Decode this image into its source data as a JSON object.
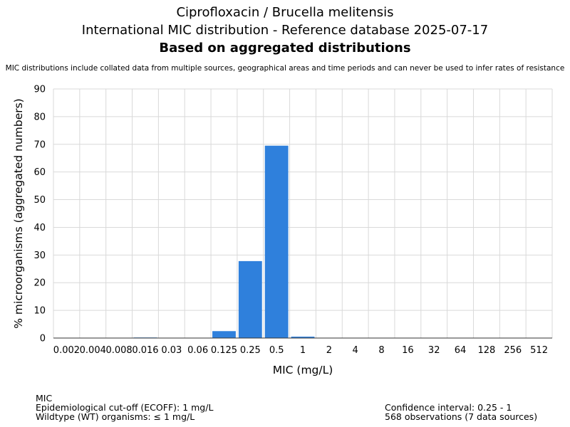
{
  "header": {
    "title_line1": "Ciprofloxacin / Brucella melitensis",
    "title_line2": "International MIC distribution - Reference database 2025-07-17",
    "title_line3": "Based on aggregated distributions",
    "note": "MIC distributions include collated data from multiple sources, geographical areas and time periods and can never be used to infer rates of resistance"
  },
  "chart_data": {
    "type": "bar",
    "categories": [
      "0.002",
      "0.004",
      "0.008",
      "0.016",
      "0.03",
      "0.06",
      "0.125",
      "0.25",
      "0.5",
      "1",
      "2",
      "4",
      "8",
      "16",
      "32",
      "64",
      "128",
      "256",
      "512"
    ],
    "values": [
      0,
      0,
      0,
      0.2,
      0,
      0,
      2.5,
      27.8,
      69.5,
      0.5,
      0,
      0,
      0,
      0,
      0,
      0,
      0,
      0,
      0
    ],
    "xlabel": "MIC (mg/L)",
    "ylabel": "% microorganisms (aggregated numbers)",
    "ylim": [
      0,
      90
    ],
    "yticks": [
      0,
      10,
      20,
      30,
      40,
      50,
      60,
      70,
      80,
      90
    ],
    "grid": true,
    "bar_color": "#2f80dc"
  },
  "footer": {
    "left": [
      "MIC",
      "Epidemiological cut-off (ECOFF): 1 mg/L",
      "Wildtype (WT) organisms: ≤ 1 mg/L"
    ],
    "right": [
      "Confidence interval: 0.25 - 1",
      "568 observations (7 data sources)"
    ]
  }
}
